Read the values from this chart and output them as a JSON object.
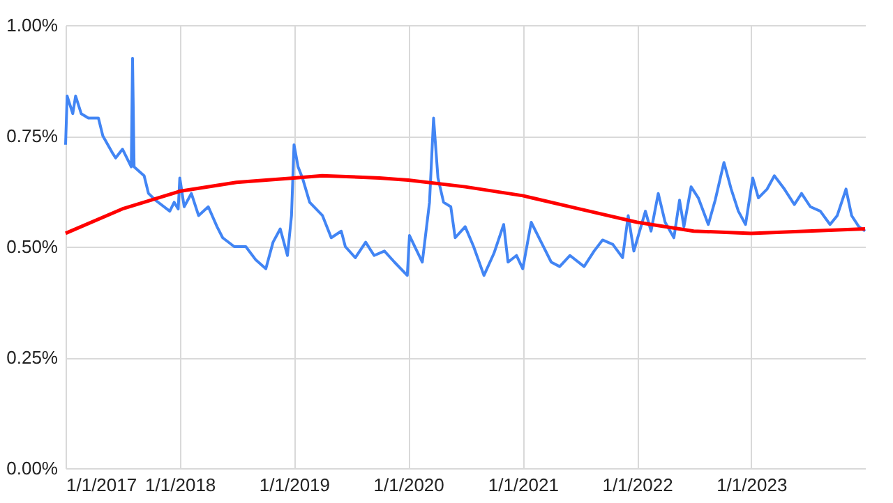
{
  "chart_data": {
    "type": "line",
    "xlim": [
      "2017-01-01",
      "2023-12-31"
    ],
    "xticks": [
      {
        "value": "2017-01-01",
        "label": "1/1/2017"
      },
      {
        "value": "2018-01-01",
        "label": "1/1/2018"
      },
      {
        "value": "2019-01-01",
        "label": "1/1/2019"
      },
      {
        "value": "2020-01-01",
        "label": "1/1/2020"
      },
      {
        "value": "2021-01-01",
        "label": "1/1/2021"
      },
      {
        "value": "2022-01-01",
        "label": "1/1/2022"
      },
      {
        "value": "2023-01-01",
        "label": "1/1/2023"
      }
    ],
    "ylim": [
      0,
      1
    ],
    "yticks": [
      {
        "value": 0,
        "label": "0.00%"
      },
      {
        "value": 0.25,
        "label": "0.25%"
      },
      {
        "value": 0.5,
        "label": "0.50%"
      },
      {
        "value": 0.75,
        "label": "0.75%"
      },
      {
        "value": 1,
        "label": "1.00%"
      }
    ],
    "grid": true,
    "line_style": "solid",
    "marker": "none",
    "series": [
      {
        "color": "#4285f4",
        "x": [
          "2017-01-01",
          "2017-01-06",
          "2017-01-24",
          "2017-02-02",
          "2017-02-20",
          "2017-03-15",
          "2017-04-16",
          "2017-04-30",
          "2017-06-01",
          "2017-06-10",
          "2017-07-02",
          "2017-07-16",
          "2017-07-30",
          "2017-08-03",
          "2017-08-08",
          "2017-09-09",
          "2017-09-23",
          "2017-10-15",
          "2017-11-30",
          "2017-12-14",
          "2017-12-27",
          "2018-01-01",
          "2018-01-15",
          "2018-02-07",
          "2018-03-02",
          "2018-04-02",
          "2018-04-30",
          "2018-05-18",
          "2018-06-24",
          "2018-07-31",
          "2018-09-01",
          "2018-10-03",
          "2018-10-26",
          "2018-11-18",
          "2018-12-11",
          "2018-12-24",
          "2019-01-01",
          "2019-01-14",
          "2019-01-28",
          "2019-02-20",
          "2019-04-02",
          "2019-04-30",
          "2019-06-01",
          "2019-06-14",
          "2019-07-16",
          "2019-08-18",
          "2019-09-14",
          "2019-10-17",
          "2019-11-18",
          "2019-12-29",
          "2020-01-05",
          "2020-02-15",
          "2020-03-09",
          "2020-03-22",
          "2020-04-05",
          "2020-04-23",
          "2020-05-16",
          "2020-05-30",
          "2020-07-01",
          "2020-07-28",
          "2020-08-30",
          "2020-10-01",
          "2020-11-01",
          "2020-11-15",
          "2020-12-12",
          "2021-01-01",
          "2021-01-28",
          "2021-03-01",
          "2021-04-02",
          "2021-04-29",
          "2021-06-01",
          "2021-07-16",
          "2021-08-17",
          "2021-09-13",
          "2021-10-16",
          "2021-11-16",
          "2021-12-04",
          "2021-12-22",
          "2022-01-28",
          "2022-02-15",
          "2022-03-10",
          "2022-04-01",
          "2022-04-29",
          "2022-05-17",
          "2022-05-31",
          "2022-06-23",
          "2022-07-16",
          "2022-08-17",
          "2022-09-08",
          "2022-10-06",
          "2022-10-29",
          "2022-11-21",
          "2022-12-14",
          "2023-01-06",
          "2023-01-24",
          "2023-02-21",
          "2023-03-16",
          "2023-04-17",
          "2023-05-19",
          "2023-06-11",
          "2023-07-09",
          "2023-08-10",
          "2023-09-10",
          "2023-10-03",
          "2023-10-31",
          "2023-11-18",
          "2023-12-11",
          "2023-12-31"
        ],
        "values": [
          0.73,
          0.84,
          0.8,
          0.84,
          0.8,
          0.79,
          0.79,
          0.75,
          0.71,
          0.7,
          0.72,
          0.7,
          0.68,
          0.925,
          0.68,
          0.66,
          0.62,
          0.605,
          0.58,
          0.6,
          0.585,
          0.655,
          0.59,
          0.62,
          0.57,
          0.59,
          0.545,
          0.52,
          0.5,
          0.5,
          0.47,
          0.45,
          0.51,
          0.54,
          0.48,
          0.57,
          0.73,
          0.68,
          0.655,
          0.6,
          0.57,
          0.52,
          0.535,
          0.5,
          0.475,
          0.51,
          0.48,
          0.49,
          0.465,
          0.435,
          0.525,
          0.465,
          0.6,
          0.79,
          0.655,
          0.6,
          0.59,
          0.52,
          0.545,
          0.5,
          0.435,
          0.485,
          0.55,
          0.465,
          0.48,
          0.45,
          0.555,
          0.51,
          0.465,
          0.455,
          0.48,
          0.455,
          0.49,
          0.515,
          0.505,
          0.475,
          0.57,
          0.49,
          0.58,
          0.535,
          0.62,
          0.555,
          0.52,
          0.605,
          0.545,
          0.635,
          0.61,
          0.55,
          0.605,
          0.69,
          0.63,
          0.58,
          0.55,
          0.655,
          0.61,
          0.63,
          0.66,
          0.63,
          0.595,
          0.62,
          0.59,
          0.58,
          0.55,
          0.57,
          0.63,
          0.57,
          0.545,
          0.535
        ]
      },
      {
        "color": "#ff0000",
        "x": [
          "2017-01-01",
          "2017-07-01",
          "2018-01-01",
          "2018-07-01",
          "2019-01-01",
          "2019-04-01",
          "2019-10-01",
          "2020-01-01",
          "2020-07-01",
          "2021-01-01",
          "2021-07-01",
          "2022-01-01",
          "2022-07-01",
          "2023-01-01",
          "2023-07-01",
          "2023-12-31"
        ],
        "values": [
          0.53,
          0.585,
          0.625,
          0.645,
          0.655,
          0.66,
          0.655,
          0.65,
          0.635,
          0.615,
          0.585,
          0.555,
          0.535,
          0.53,
          0.535,
          0.54
        ]
      }
    ]
  }
}
